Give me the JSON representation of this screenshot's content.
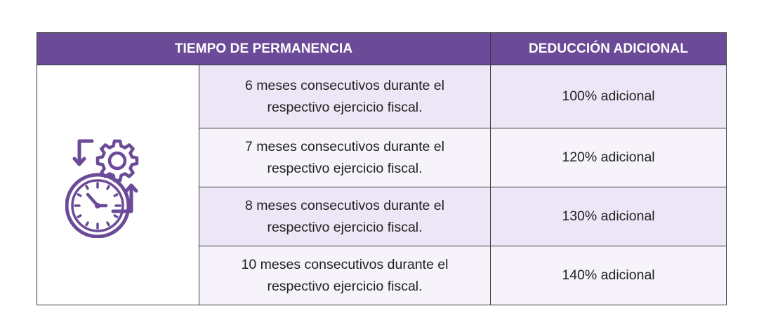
{
  "table": {
    "headers": {
      "tiempo": "TIEMPO DE PERMANENCIA",
      "deduccion": "DEDUCCIÓN ADICIONAL"
    },
    "icon": "clock-gear-cycle-icon",
    "accent_color": "#6b4a98",
    "rows": [
      {
        "descripcion": "6 meses consecutivos durante el respectivo ejercicio fiscal.",
        "deduccion": "100% adicional"
      },
      {
        "descripcion": "7 meses consecutivos durante el respectivo ejercicio fiscal.",
        "deduccion": "120% adicional"
      },
      {
        "descripcion": "8 meses consecutivos durante el respectivo ejercicio fiscal.",
        "deduccion": "130% adicional"
      },
      {
        "descripcion": "10 meses consecutivos durante el respectivo ejercicio fiscal.",
        "deduccion": "140% adicional"
      }
    ]
  }
}
